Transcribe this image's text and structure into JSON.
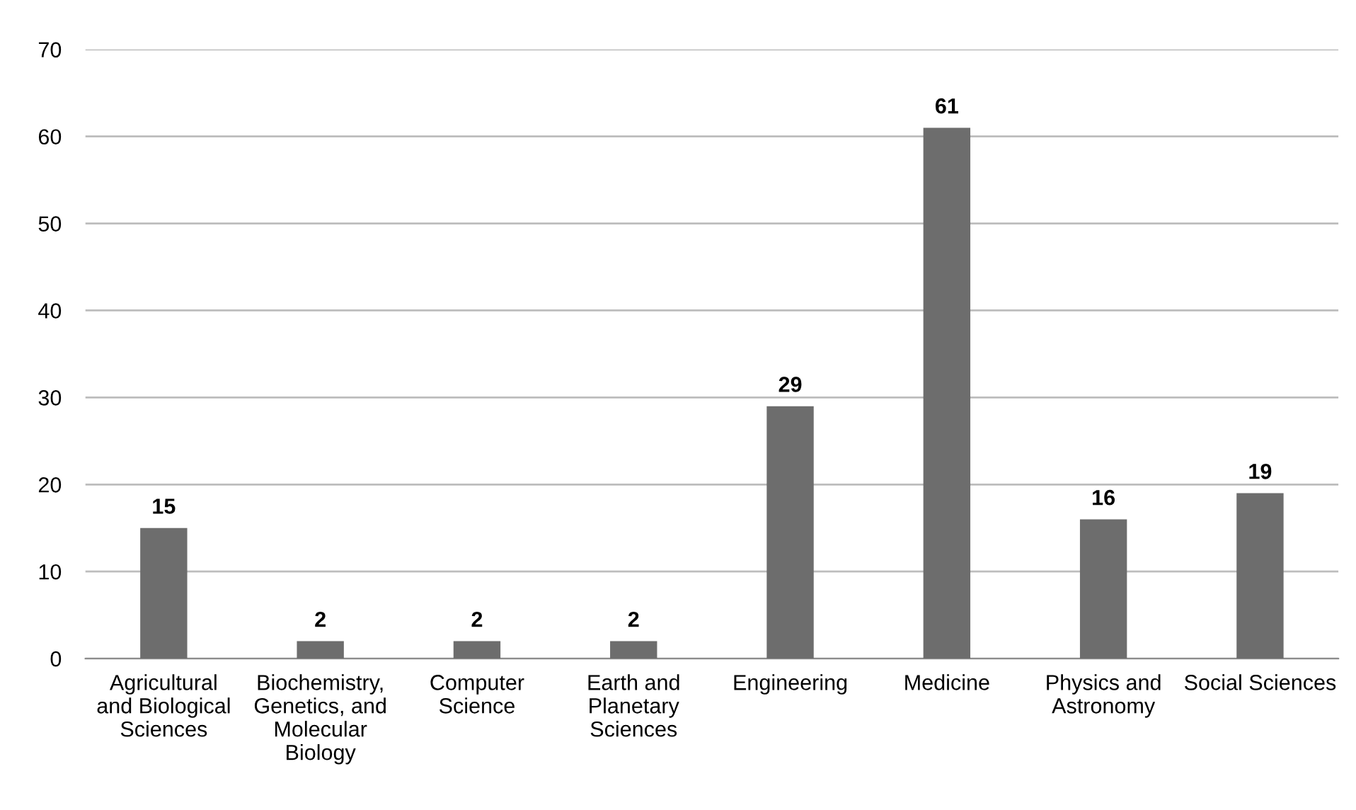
{
  "chart_data": {
    "type": "bar",
    "categories": [
      "Agricultural\nand Biological\nSciences",
      "Biochemistry,\nGenetics, and\nMolecular\nBiology",
      "Computer\nScience",
      "Earth and\nPlanetary\nSciences",
      "Engineering",
      "Medicine",
      "Physics and\nAstronomy",
      "Social Sciences"
    ],
    "values": [
      15,
      2,
      2,
      2,
      29,
      61,
      16,
      19
    ],
    "color": "#6d6d6d",
    "ylim": [
      0,
      70
    ],
    "yticks": [
      0,
      10,
      20,
      30,
      40,
      50,
      60,
      70
    ],
    "grid": "y",
    "data_labels": true
  }
}
